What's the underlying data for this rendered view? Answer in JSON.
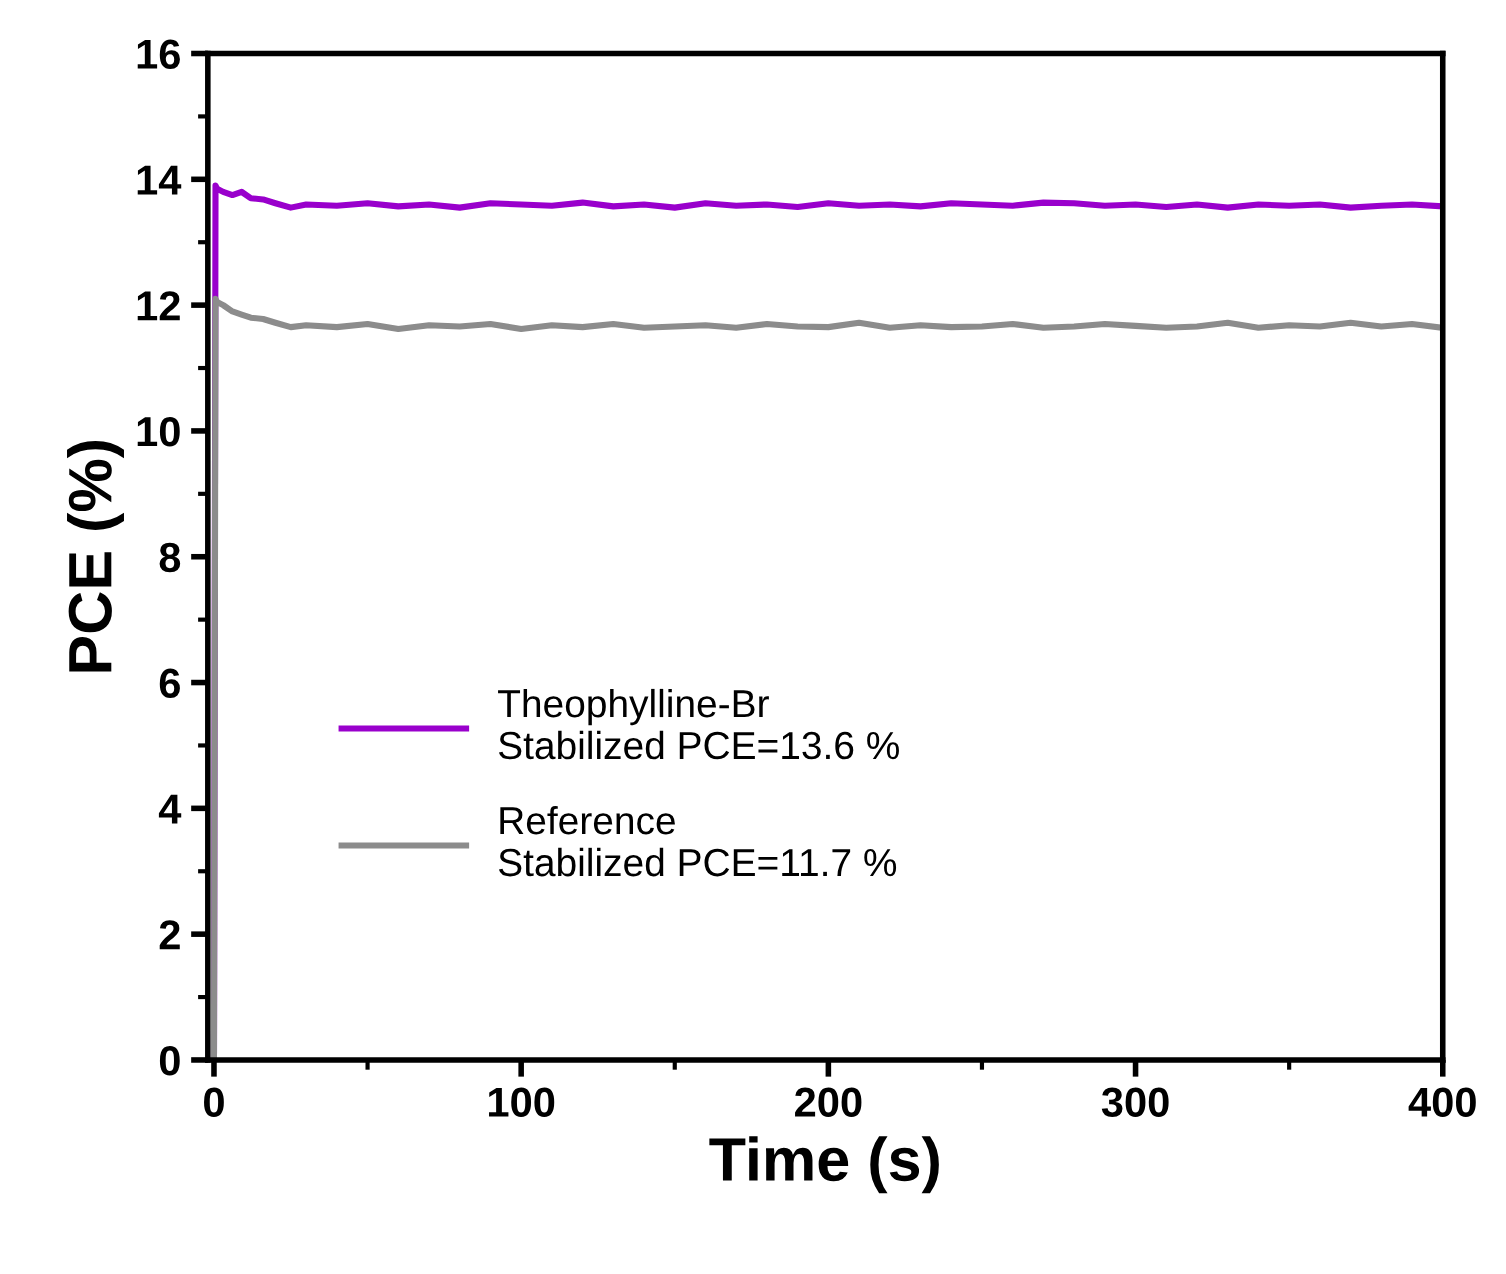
{
  "chart_data": {
    "type": "line",
    "xlabel": "Time (s)",
    "ylabel": "PCE (%)",
    "xlim": [
      -2,
      400
    ],
    "ylim": [
      0,
      16
    ],
    "xticks": [
      0,
      100,
      200,
      300,
      400
    ],
    "yticks": [
      0,
      2,
      4,
      6,
      8,
      10,
      12,
      14,
      16
    ],
    "grid": false,
    "legend": "bottom left",
    "marker": "none",
    "line_style": "solid",
    "series": [
      {
        "name": "Theophylline-Br\nStabilized PCE=13.6 %",
        "color": "#9900cc",
        "x": [
          0,
          0.5,
          1,
          3,
          6,
          9,
          12,
          16,
          20,
          25,
          30,
          40,
          50,
          60,
          70,
          80,
          90,
          100,
          110,
          120,
          130,
          140,
          150,
          160,
          170,
          180,
          190,
          200,
          210,
          220,
          230,
          240,
          250,
          260,
          270,
          280,
          290,
          300,
          310,
          320,
          330,
          340,
          350,
          360,
          370,
          380,
          390,
          400
        ],
        "values": [
          0,
          13.9,
          13.85,
          13.8,
          13.75,
          13.8,
          13.7,
          13.68,
          13.62,
          13.55,
          13.6,
          13.58,
          13.62,
          13.57,
          13.6,
          13.55,
          13.62,
          13.6,
          13.58,
          13.63,
          13.57,
          13.6,
          13.55,
          13.62,
          13.58,
          13.6,
          13.56,
          13.62,
          13.58,
          13.6,
          13.57,
          13.62,
          13.6,
          13.58,
          13.63,
          13.62,
          13.58,
          13.6,
          13.56,
          13.6,
          13.55,
          13.6,
          13.58,
          13.6,
          13.55,
          13.58,
          13.6,
          13.57
        ]
      },
      {
        "name": "Reference\nStabilized PCE=11.7 %",
        "color": "#8c8c8c",
        "x": [
          0,
          0.5,
          1,
          3,
          6,
          9,
          12,
          16,
          20,
          25,
          30,
          40,
          50,
          60,
          70,
          80,
          90,
          100,
          110,
          120,
          130,
          140,
          150,
          160,
          170,
          180,
          190,
          200,
          210,
          220,
          230,
          240,
          250,
          260,
          270,
          280,
          290,
          300,
          310,
          320,
          330,
          340,
          350,
          360,
          370,
          380,
          390,
          400
        ],
        "values": [
          0,
          12.1,
          12.05,
          12.0,
          11.9,
          11.85,
          11.8,
          11.78,
          11.72,
          11.65,
          11.68,
          11.65,
          11.7,
          11.62,
          11.68,
          11.66,
          11.7,
          11.62,
          11.68,
          11.65,
          11.7,
          11.64,
          11.66,
          11.68,
          11.64,
          11.7,
          11.66,
          11.65,
          11.72,
          11.64,
          11.68,
          11.65,
          11.66,
          11.7,
          11.64,
          11.66,
          11.7,
          11.67,
          11.64,
          11.66,
          11.72,
          11.64,
          11.68,
          11.66,
          11.72,
          11.66,
          11.7,
          11.64
        ]
      }
    ]
  }
}
